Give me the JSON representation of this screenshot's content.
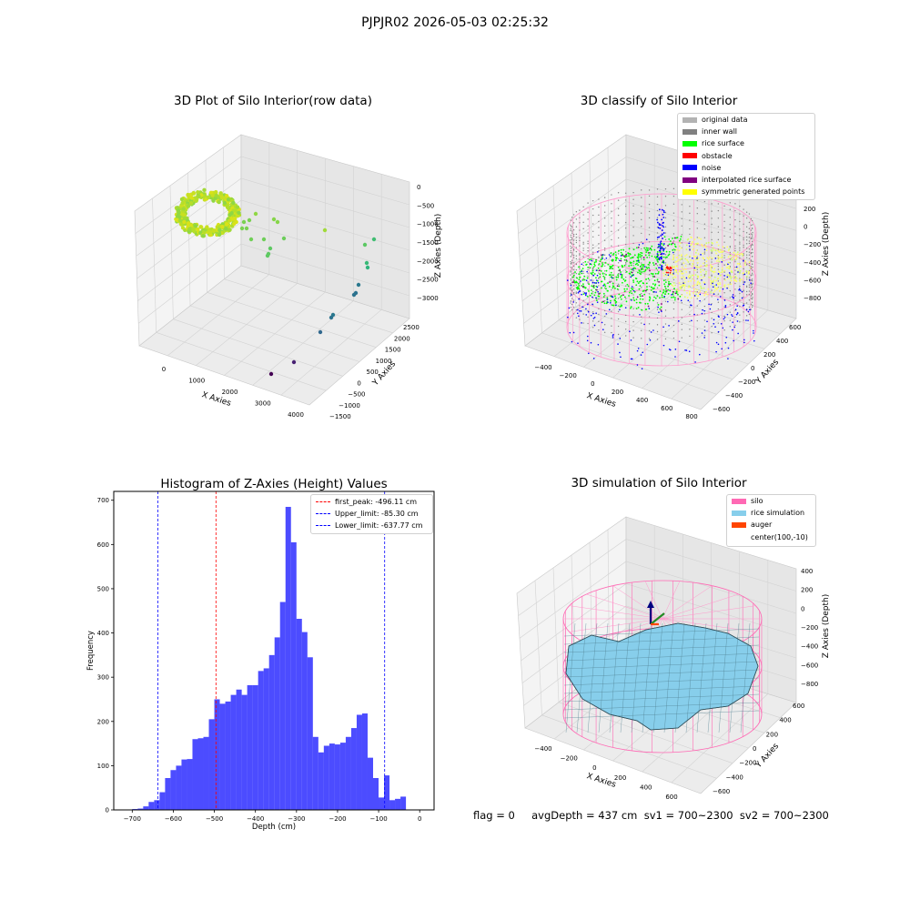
{
  "figure": {
    "suptitle": "PJPJR02 2026-05-03 02:25:32"
  },
  "panel_raw": {
    "title": "3D Plot of Silo Interior(row data)",
    "xlabel": "X Axies",
    "ylabel": "Y Axies",
    "zlabel": "Z Axies (Depth)",
    "xticks": [
      "0",
      "1000",
      "2000",
      "3000",
      "4000"
    ],
    "yticks": [
      "2500",
      "2000",
      "1500",
      "1000",
      "500",
      "0",
      "−500",
      "−1000",
      "−1500"
    ],
    "zticks": [
      "0",
      "−500",
      "−1000",
      "−1500",
      "−2000",
      "−2500",
      "−3000"
    ]
  },
  "panel_classify": {
    "title": "3D classify of Silo Interior",
    "xlabel": "X Axies",
    "ylabel": "Y Axies",
    "zlabel": "Z Axies (Depth)",
    "xticks": [
      "−400",
      "−200",
      "0",
      "200",
      "400",
      "600",
      "800"
    ],
    "yticks": [
      "600",
      "400",
      "200",
      "0",
      "−200",
      "−400",
      "−600"
    ],
    "zticks": [
      "200",
      "0",
      "−200",
      "−400",
      "−600",
      "−800"
    ],
    "legend": [
      {
        "label": "original data",
        "color": "#b3b3b3"
      },
      {
        "label": "inner wall",
        "color": "#808080"
      },
      {
        "label": "rice surface",
        "color": "#00ff00"
      },
      {
        "label": "obstacle",
        "color": "#ff0000"
      },
      {
        "label": "noise",
        "color": "#0000ff"
      },
      {
        "label": "interpolated rice surface",
        "color": "#800080"
      },
      {
        "label": "symmetric generated points",
        "color": "#ffff00"
      }
    ]
  },
  "panel_sim": {
    "title": "3D simulation of Silo Interior",
    "xlabel": "X Axies",
    "ylabel": "Y Axies",
    "zlabel": "Z Axies (Depth)",
    "xticks": [
      "−400",
      "−200",
      "0",
      "200",
      "400",
      "600"
    ],
    "yticks": [
      "600",
      "400",
      "200",
      "0",
      "−200",
      "−400",
      "−600"
    ],
    "zticks": [
      "400",
      "200",
      "0",
      "−200",
      "−400",
      "−600",
      "−800"
    ],
    "legend": [
      {
        "label": "silo",
        "color": "#ff69b4"
      },
      {
        "label": "rice simulation",
        "color": "#87ceeb"
      },
      {
        "label": "auger",
        "color": "#ff4500"
      },
      {
        "label": "center(100,-10)",
        "color": ""
      }
    ]
  },
  "footer": {
    "text": "flag = 0     avgDepth = 437 cm  sv1 = 700~2300  sv2 = 700~2300"
  },
  "chart_data": {
    "type": "bar",
    "title": "Histogram of Z-Axies (Height) Values",
    "xlabel": "Depth (cm)",
    "ylabel": "Frequency",
    "xlim": [
      -745,
      35
    ],
    "ylim": [
      0,
      720
    ],
    "xticks": [
      -700,
      -600,
      -500,
      -400,
      -300,
      -200,
      -100,
      0
    ],
    "yticks": [
      0,
      100,
      200,
      300,
      400,
      500,
      600,
      700
    ],
    "bar_color": "#0000ff",
    "bin_start": -700,
    "bin_width": 13.33,
    "values": [
      2,
      3,
      8,
      18,
      22,
      40,
      72,
      90,
      100,
      114,
      115,
      160,
      162,
      165,
      205,
      250,
      240,
      245,
      260,
      272,
      260,
      282,
      282,
      314,
      320,
      350,
      390,
      470,
      685,
      605,
      432,
      402,
      345,
      165,
      130,
      145,
      150,
      148,
      152,
      165,
      185,
      215,
      218,
      118,
      72,
      28,
      78,
      22,
      25,
      30
    ],
    "lines": [
      {
        "label": "first_peak: -496.11 cm",
        "x": -496.11,
        "color": "#ff0000"
      },
      {
        "label": "Upper_limit: -85.30 cm",
        "x": -85.3,
        "color": "#0000ff"
      },
      {
        "label": "Lower_limit: -637.77 cm",
        "x": -637.77,
        "color": "#0000ff"
      }
    ],
    "legend_position": "top-right"
  }
}
